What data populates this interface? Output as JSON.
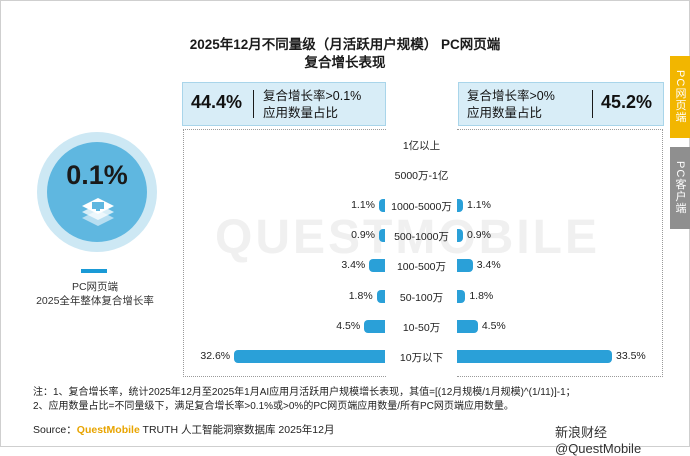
{
  "title": {
    "line1": "2025年12月不同量级（月活跃用户规模） PC网页端",
    "line2": "复合增长表现"
  },
  "tabs": {
    "pc": "PC网页端",
    "app": "PC客户端"
  },
  "left_kpi": {
    "value": "44.4%",
    "line1": "复合增长率>0.1%",
    "line2": "应用数量占比"
  },
  "right_kpi": {
    "value": "45.2%",
    "line1": "复合增长率>0%",
    "line2": "应用数量占比"
  },
  "overall": {
    "value": "0.1%",
    "caption1": "PC网页端",
    "caption2": "2025全年整体复合增长率"
  },
  "watermark_bg": "QUESTMOBILE",
  "chart_data": {
    "type": "bar",
    "categories": [
      "1亿以上",
      "5000万-1亿",
      "1000-5000万",
      "500-1000万",
      "100-500万",
      "50-100万",
      "10-50万",
      "10万以下"
    ],
    "series": [
      {
        "name": "复合增长率>0.1%",
        "values": [
          null,
          null,
          1.1,
          0.9,
          3.4,
          1.8,
          4.5,
          32.6
        ],
        "labels": [
          "",
          "",
          "1.1%",
          "0.9%",
          "3.4%",
          "1.8%",
          "4.5%",
          "32.6%"
        ]
      },
      {
        "name": "复合增长率>0%",
        "values": [
          null,
          null,
          1.1,
          0.9,
          3.4,
          1.8,
          4.5,
          33.5
        ],
        "labels": [
          "",
          "",
          "1.1%",
          "0.9%",
          "3.4%",
          "1.8%",
          "4.5%",
          "33.5%"
        ]
      }
    ]
  },
  "notes": {
    "line1": "注：1、复合增长率，统计2025年12月至2025年1月AI应用月活跃用户规模增长表现，其值=[(12月规模/1月规模)^(1/11)]-1；",
    "line2": "2、应用数量占比=不同量级下，满足复合增长率>0.1%或>0%的PC网页端应用数量/所有PC网页端应用数量。"
  },
  "source": {
    "prefix": "Source：",
    "brand": "QuestMobile",
    "rest": " TRUTH 人工智能洞察数据库 2025年12月"
  },
  "credit": "新浪财经 @QuestMobile"
}
